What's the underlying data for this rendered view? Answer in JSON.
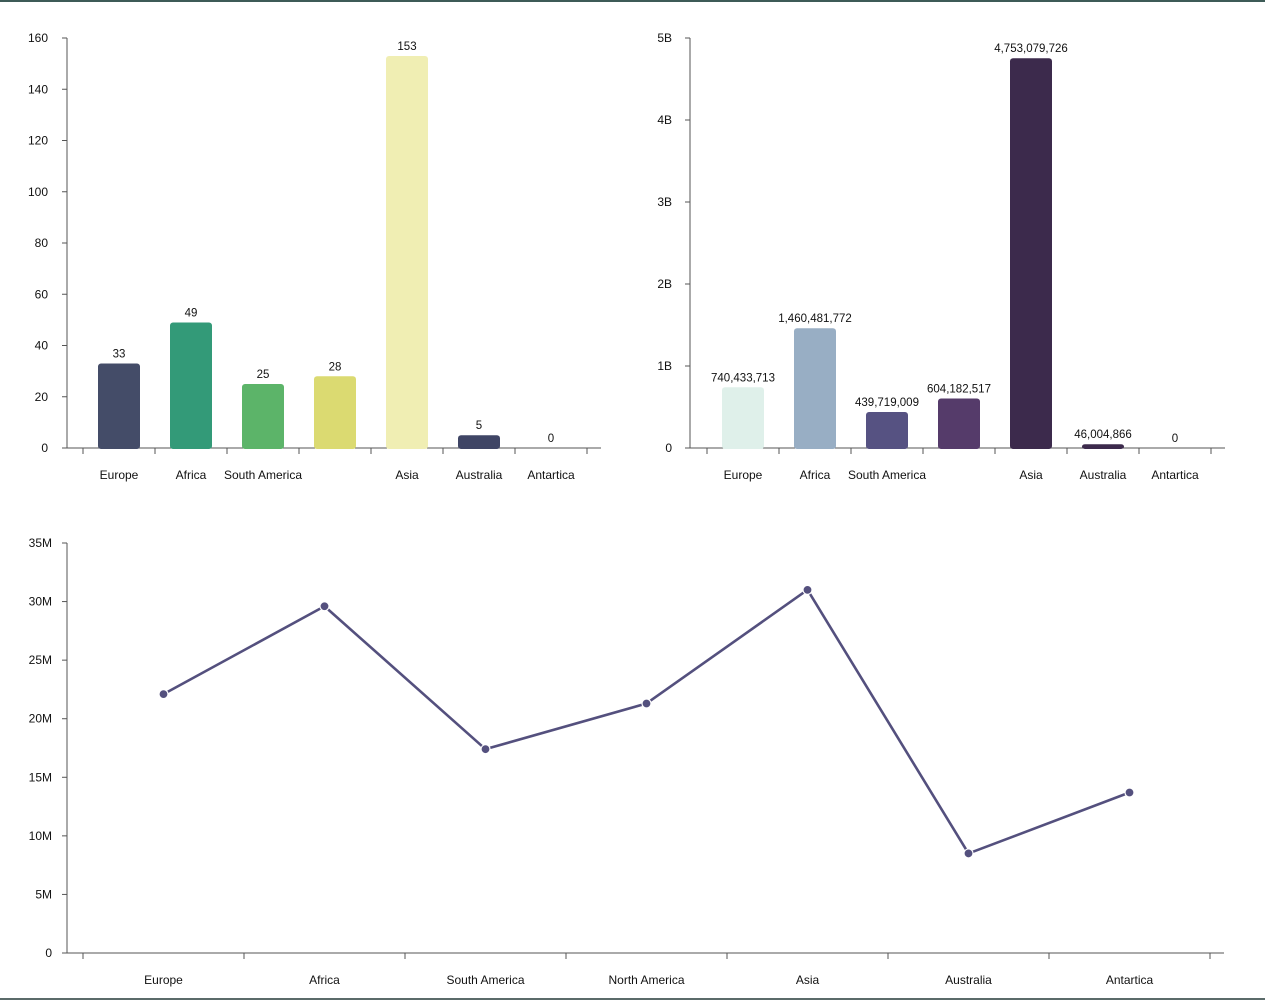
{
  "chart_data": [
    {
      "type": "bar",
      "categories": [
        "Europe",
        "Africa",
        "South America",
        "",
        "Asia",
        "Australia",
        "Antartica"
      ],
      "values": [
        33,
        49,
        25,
        28,
        153,
        5,
        0
      ],
      "value_labels": [
        "33",
        "49",
        "25",
        "28",
        "153",
        "5",
        "0"
      ],
      "colors": [
        "#444c68",
        "#339a78",
        "#5cb469",
        "#dbda71",
        "#f0eeb3",
        "#3f4565",
        "#3f4565"
      ],
      "ylim": [
        0,
        160
      ],
      "yticks": [
        0,
        20,
        40,
        60,
        80,
        100,
        120,
        140,
        160
      ],
      "ytick_labels": [
        "0",
        "20",
        "40",
        "60",
        "80",
        "100",
        "120",
        "140",
        "160"
      ],
      "title": "",
      "xlabel": "",
      "ylabel": "",
      "grid": false
    },
    {
      "type": "bar",
      "categories": [
        "Europe",
        "Africa",
        "South America",
        "",
        "Asia",
        "Australia",
        "Antartica"
      ],
      "values": [
        740433713,
        1460481772,
        439719009,
        604182517,
        4753079726,
        46004866,
        0
      ],
      "value_labels": [
        "740,433,713",
        "1,460,481,772",
        "439,719,009",
        "604,182,517",
        "4,753,079,726",
        "46,004,866",
        "0"
      ],
      "colors": [
        "#dff0ea",
        "#98aec4",
        "#565282",
        "#553b6a",
        "#3c2a4c",
        "#3c2a4c",
        "#3c2a4c"
      ],
      "ylim": [
        0,
        5000000000
      ],
      "yticks": [
        0,
        1000000000,
        2000000000,
        3000000000,
        4000000000,
        5000000000
      ],
      "ytick_labels": [
        "0",
        "1B",
        "2B",
        "3B",
        "4B",
        "5B"
      ],
      "title": "",
      "xlabel": "",
      "ylabel": "",
      "grid": false
    },
    {
      "type": "line",
      "categories": [
        "Europe",
        "Africa",
        "South America",
        "North America",
        "Asia",
        "Australia",
        "Antartica"
      ],
      "values": [
        22100000,
        29600000,
        17400000,
        21300000,
        31000000,
        8500000,
        13700000
      ],
      "color": "#54507e",
      "ylim": [
        0,
        35000000
      ],
      "yticks": [
        0,
        5000000,
        10000000,
        15000000,
        20000000,
        25000000,
        30000000,
        35000000
      ],
      "ytick_labels": [
        "0",
        "5M",
        "10M",
        "15M",
        "20M",
        "25M",
        "30M",
        "35M"
      ],
      "title": "",
      "xlabel": "",
      "ylabel": "",
      "grid": false
    }
  ]
}
